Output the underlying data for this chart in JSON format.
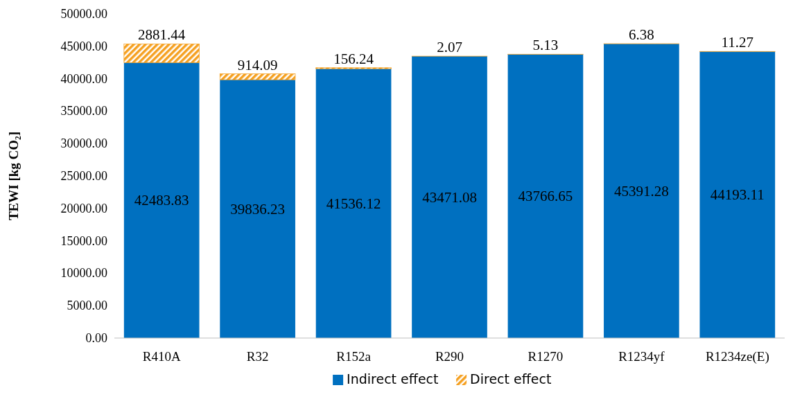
{
  "chart_data": {
    "type": "bar",
    "stacked": true,
    "ylabel": "TEWI [kg CO₂]",
    "categories": [
      "R410A",
      "R32",
      "R152a",
      "R290",
      "R1270",
      "R1234yf",
      "R1234ze(E)"
    ],
    "series": [
      {
        "name": "Indirect effect",
        "color": "#0070c0",
        "values": [
          42483.83,
          39836.23,
          41536.12,
          43471.08,
          43766.65,
          45391.28,
          44193.11
        ]
      },
      {
        "name": "Direct effect",
        "color": "#f5a020",
        "values": [
          2881.44,
          914.09,
          156.24,
          2.07,
          5.13,
          6.38,
          11.27
        ]
      }
    ],
    "ylim": [
      0,
      50000
    ],
    "yticks": [
      {
        "value": 0,
        "label": "0.00"
      },
      {
        "value": 5000,
        "label": "5000.00"
      },
      {
        "value": 10000,
        "label": "10000.00"
      },
      {
        "value": 15000,
        "label": "15000.00"
      },
      {
        "value": 20000,
        "label": "20000.00"
      },
      {
        "value": 25000,
        "label": "25000.00"
      },
      {
        "value": 30000,
        "label": "30000.00"
      },
      {
        "value": 35000,
        "label": "35000.00"
      },
      {
        "value": 40000,
        "label": "40000.00"
      },
      {
        "value": 45000,
        "label": "45000.00"
      },
      {
        "value": 50000,
        "label": "50000.00"
      }
    ],
    "data_labels": true,
    "legend": "bottom",
    "grid": false
  }
}
